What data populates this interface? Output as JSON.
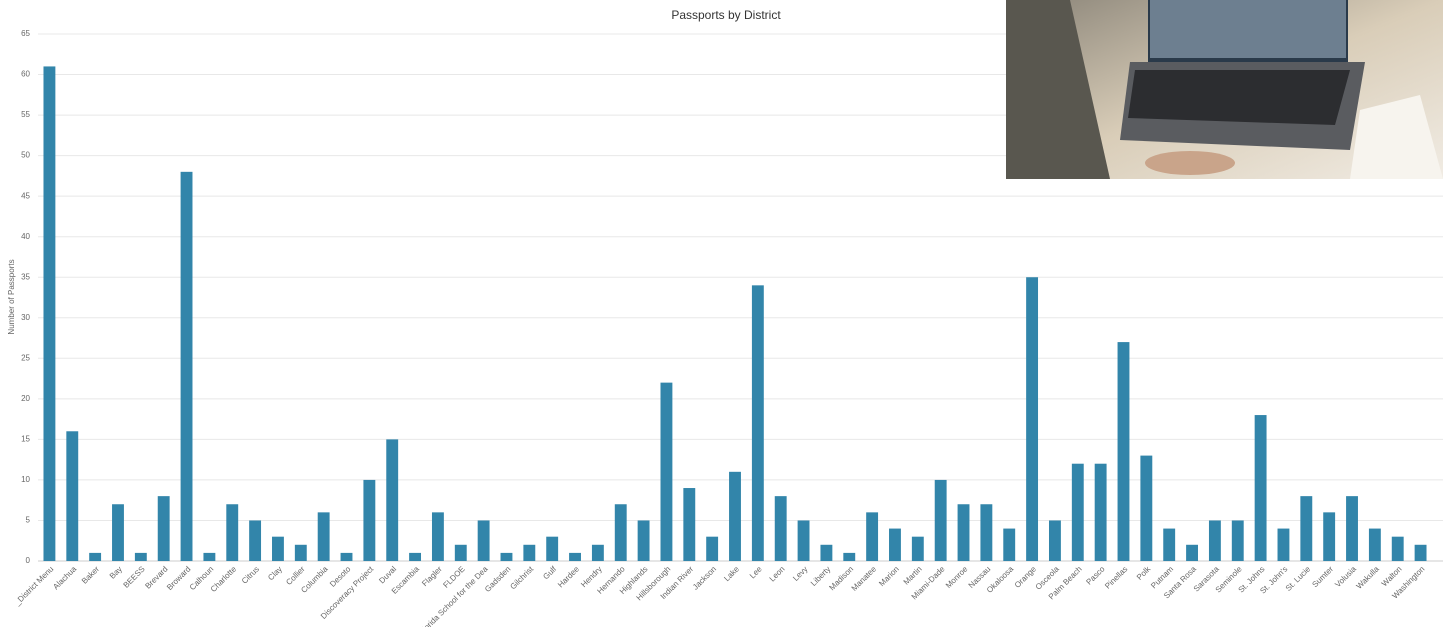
{
  "chart_data": {
    "type": "bar",
    "title": "Passports by District",
    "y_label": "Number of Passports",
    "categories": [
      "_District Menu",
      "Alachua",
      "Baker",
      "Bay",
      "BEESS",
      "Brevard",
      "Broward",
      "Calhoun",
      "Charlotte",
      "Citrus",
      "Clay",
      "Collier",
      "Columbia",
      "Desoto",
      "Discoveracy Project",
      "Duval",
      "Escambia",
      "Flagler",
      "FLDOE",
      "Florida School for the Dea",
      "Gadsden",
      "Gilchrist",
      "Gulf",
      "Hardee",
      "Hendry",
      "Hernando",
      "Highlands",
      "Hillsborough",
      "Indian River",
      "Jackson",
      "Lake",
      "Lee",
      "Leon",
      "Levy",
      "Liberty",
      "Madison",
      "Manatee",
      "Marion",
      "Martin",
      "Miami-Dade",
      "Monroe",
      "Nassau",
      "Okaloosa",
      "Orange",
      "Osceola",
      "Palm Beach",
      "Pasco",
      "Pinellas",
      "Polk",
      "Putnam",
      "Santa Rosa",
      "Sarasota",
      "Seminole",
      "St. Johns",
      "St. John's",
      "St. Lucie",
      "Sumter",
      "Volusia",
      "Wakulla",
      "Walton",
      "Washington"
    ],
    "values": [
      61,
      16,
      1,
      7,
      1,
      8,
      48,
      1,
      7,
      5,
      3,
      2,
      6,
      1,
      10,
      15,
      1,
      6,
      2,
      5,
      1,
      2,
      3,
      1,
      2,
      7,
      5,
      22,
      9,
      3,
      11,
      34,
      8,
      5,
      2,
      1,
      6,
      4,
      3,
      10,
      7,
      7,
      4,
      35,
      5,
      12,
      12,
      27,
      13,
      4,
      2,
      5,
      5,
      18,
      4,
      8,
      6,
      8,
      4,
      3,
      2
    ],
    "color": "#3285aa",
    "ylim": [
      0,
      65
    ],
    "yticks": [
      0,
      5,
      10,
      15,
      20,
      25,
      30,
      35,
      40,
      45,
      50,
      55,
      60,
      65
    ],
    "grid": true
  }
}
